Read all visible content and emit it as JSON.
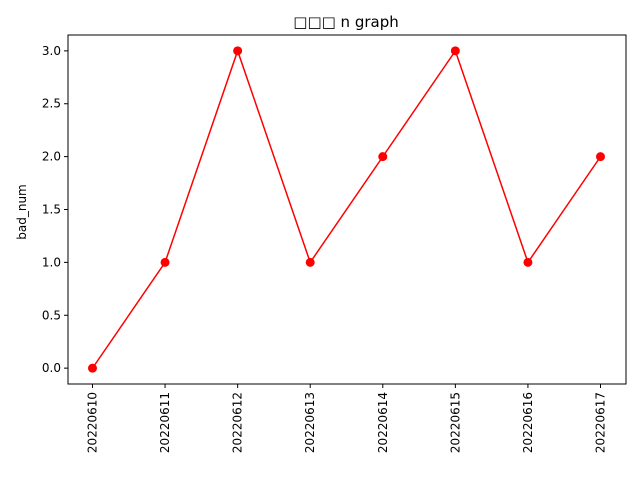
{
  "chart_data": {
    "type": "line",
    "title": "□□□ n graph",
    "xlabel": "",
    "ylabel": "bad_num",
    "categories": [
      "20220610",
      "20220611",
      "20220612",
      "20220613",
      "20220614",
      "20220615",
      "20220616",
      "20220617"
    ],
    "series": [
      {
        "values": [
          0,
          1,
          3,
          1,
          2,
          3,
          1,
          2
        ],
        "color": "#ff0000",
        "marker": "circle"
      }
    ],
    "ylim": [
      -0.15,
      3.15
    ],
    "yticks": [
      0.0,
      0.5,
      1.0,
      1.5,
      2.0,
      2.5,
      3.0
    ],
    "ytick_labels": [
      "0.0",
      "0.5",
      "1.0",
      "1.5",
      "2.0",
      "2.5",
      "3.0"
    ],
    "x_tick_rotation": "vertical",
    "grid": false,
    "legend": false
  }
}
